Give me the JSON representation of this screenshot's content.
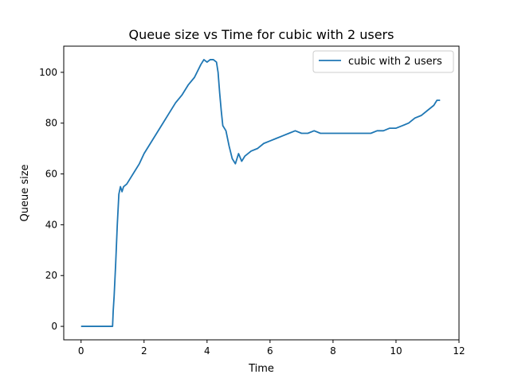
{
  "chart_data": {
    "type": "line",
    "title": "Queue size vs Time for cubic with 2 users",
    "xlabel": "Time",
    "ylabel": "Queue size",
    "xlim": [
      -0.55,
      12
    ],
    "ylim": [
      -5.3,
      110.3
    ],
    "xticks": [
      0,
      2,
      4,
      6,
      8,
      10,
      12
    ],
    "yticks": [
      0,
      20,
      40,
      60,
      80,
      100
    ],
    "grid": false,
    "legend_position": "upper right",
    "series": [
      {
        "name": "cubic with 2 users",
        "color": "#1f77b4",
        "points": [
          [
            0,
            0
          ],
          [
            0.5,
            0
          ],
          [
            1.0,
            0
          ],
          [
            1.02,
            6
          ],
          [
            1.05,
            12
          ],
          [
            1.1,
            25
          ],
          [
            1.15,
            40
          ],
          [
            1.2,
            52
          ],
          [
            1.25,
            55
          ],
          [
            1.3,
            53
          ],
          [
            1.35,
            55
          ],
          [
            1.45,
            56
          ],
          [
            1.55,
            58
          ],
          [
            1.7,
            61
          ],
          [
            1.85,
            64
          ],
          [
            2.0,
            68
          ],
          [
            2.2,
            72
          ],
          [
            2.4,
            76
          ],
          [
            2.6,
            80
          ],
          [
            2.8,
            84
          ],
          [
            3.0,
            88
          ],
          [
            3.2,
            91
          ],
          [
            3.4,
            95
          ],
          [
            3.6,
            98
          ],
          [
            3.8,
            103
          ],
          [
            3.9,
            105
          ],
          [
            4.0,
            104
          ],
          [
            4.1,
            105
          ],
          [
            4.2,
            105
          ],
          [
            4.3,
            104
          ],
          [
            4.35,
            100
          ],
          [
            4.4,
            92
          ],
          [
            4.45,
            85
          ],
          [
            4.5,
            79
          ],
          [
            4.6,
            77
          ],
          [
            4.7,
            71
          ],
          [
            4.8,
            66
          ],
          [
            4.9,
            64
          ],
          [
            5.0,
            68
          ],
          [
            5.1,
            65
          ],
          [
            5.2,
            67
          ],
          [
            5.4,
            69
          ],
          [
            5.6,
            70
          ],
          [
            5.8,
            72
          ],
          [
            6.0,
            73
          ],
          [
            6.2,
            74
          ],
          [
            6.4,
            75
          ],
          [
            6.6,
            76
          ],
          [
            6.8,
            77
          ],
          [
            7.0,
            76
          ],
          [
            7.2,
            76
          ],
          [
            7.4,
            77
          ],
          [
            7.6,
            76
          ],
          [
            7.8,
            76
          ],
          [
            8.0,
            76
          ],
          [
            8.2,
            76
          ],
          [
            8.4,
            76
          ],
          [
            8.6,
            76
          ],
          [
            8.8,
            76
          ],
          [
            9.0,
            76
          ],
          [
            9.2,
            76
          ],
          [
            9.4,
            77
          ],
          [
            9.6,
            77
          ],
          [
            9.8,
            78
          ],
          [
            10.0,
            78
          ],
          [
            10.2,
            79
          ],
          [
            10.4,
            80
          ],
          [
            10.6,
            82
          ],
          [
            10.8,
            83
          ],
          [
            11.0,
            85
          ],
          [
            11.2,
            87
          ],
          [
            11.3,
            89
          ],
          [
            11.4,
            89
          ]
        ]
      }
    ]
  }
}
